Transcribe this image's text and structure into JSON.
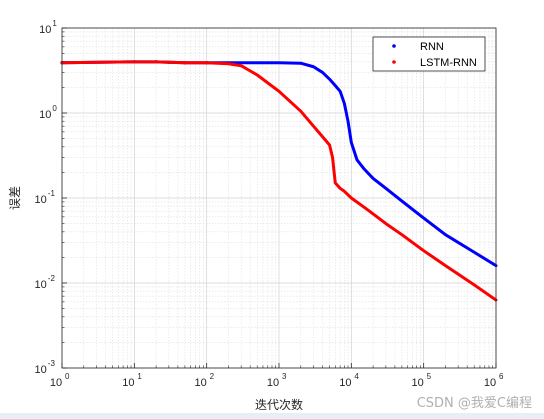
{
  "chart_data": {
    "type": "line",
    "title": "",
    "xlabel": "迭代次数",
    "ylabel": "误差",
    "x_scale": "log",
    "y_scale": "log",
    "xlim": [
      1,
      1000000
    ],
    "ylim": [
      0.001,
      10
    ],
    "x_ticks": [
      {
        "value": 1,
        "base": "10",
        "exp": "0"
      },
      {
        "value": 10,
        "base": "10",
        "exp": "1"
      },
      {
        "value": 100,
        "base": "10",
        "exp": "2"
      },
      {
        "value": 1000,
        "base": "10",
        "exp": "3"
      },
      {
        "value": 10000,
        "base": "10",
        "exp": "4"
      },
      {
        "value": 100000,
        "base": "10",
        "exp": "5"
      },
      {
        "value": 1000000,
        "base": "10",
        "exp": "6"
      }
    ],
    "y_ticks": [
      {
        "value": 0.001,
        "base": "10",
        "exp": "-3"
      },
      {
        "value": 0.01,
        "base": "10",
        "exp": "-2"
      },
      {
        "value": 0.1,
        "base": "10",
        "exp": "-1"
      },
      {
        "value": 1,
        "base": "10",
        "exp": "0"
      },
      {
        "value": 10,
        "base": "10",
        "exp": "1"
      }
    ],
    "grid": true,
    "minor_grid": true,
    "legend_position": "top-right",
    "series": [
      {
        "name": "RNN",
        "color": "#0000ff",
        "x": [
          1,
          10,
          20,
          30,
          50,
          100,
          200,
          500,
          1000,
          2000,
          3000,
          4000,
          5000,
          6000,
          7000,
          8000,
          9000,
          10000,
          12000,
          15000,
          20000,
          30000,
          50000,
          100000,
          200000,
          500000,
          1000000
        ],
        "y": [
          3.9,
          4.0,
          4.0,
          3.95,
          3.9,
          3.9,
          3.9,
          3.9,
          3.9,
          3.85,
          3.5,
          3.0,
          2.5,
          2.1,
          1.8,
          1.3,
          0.8,
          0.45,
          0.28,
          0.22,
          0.17,
          0.13,
          0.092,
          0.058,
          0.037,
          0.023,
          0.016
        ]
      },
      {
        "name": "LSTM-RNN",
        "color": "#ff0000",
        "x": [
          1,
          10,
          20,
          30,
          50,
          100,
          200,
          300,
          500,
          1000,
          2000,
          3000,
          5000,
          5500,
          6000,
          7000,
          8000,
          10000,
          15000,
          20000,
          30000,
          50000,
          100000,
          200000,
          500000,
          1000000
        ],
        "y": [
          3.9,
          4.0,
          4.0,
          3.95,
          3.9,
          3.9,
          3.8,
          3.6,
          2.8,
          1.8,
          1.05,
          0.7,
          0.42,
          0.3,
          0.15,
          0.13,
          0.12,
          0.1,
          0.078,
          0.065,
          0.05,
          0.037,
          0.024,
          0.016,
          0.0095,
          0.0063
        ]
      }
    ]
  },
  "watermark": "CSDN @我爱C编程"
}
